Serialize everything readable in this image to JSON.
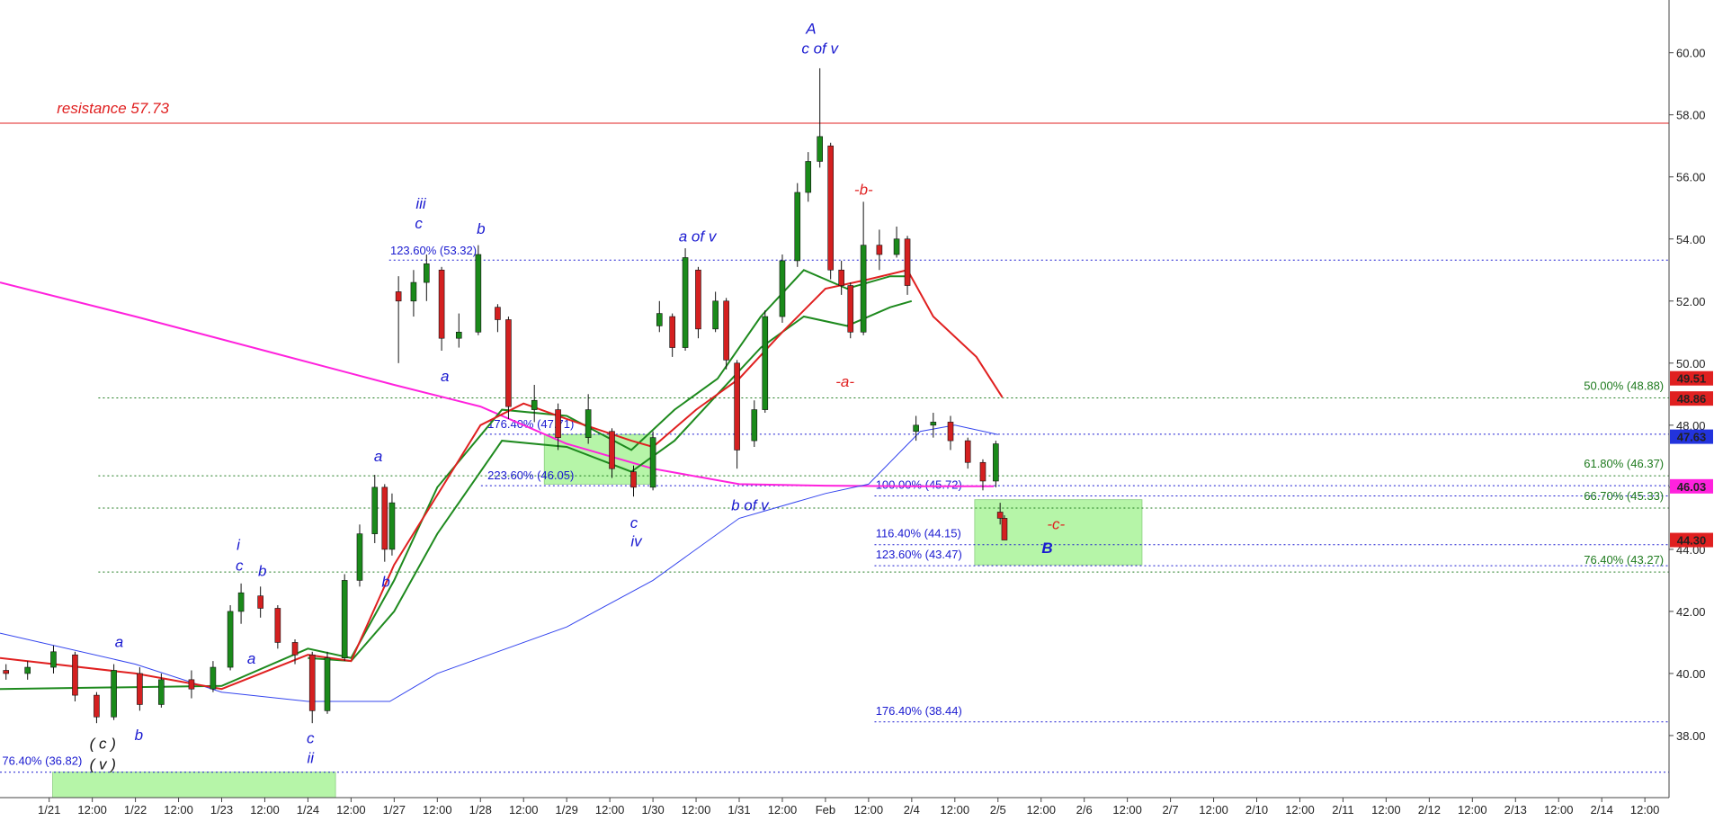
{
  "chart_data": {
    "type": "candlestick",
    "xlim": [
      -1.14,
      37.56
    ],
    "ylim": [
      36.0,
      61.7
    ],
    "xticks": [
      {
        "value": 0,
        "label": "1/21"
      },
      {
        "value": 1,
        "label": "12:00"
      },
      {
        "value": 2,
        "label": "1/22"
      },
      {
        "value": 3,
        "label": "12:00"
      },
      {
        "value": 4,
        "label": "1/23"
      },
      {
        "value": 5,
        "label": "12:00"
      },
      {
        "value": 6,
        "label": "1/24"
      },
      {
        "value": 7,
        "label": "12:00"
      },
      {
        "value": 8,
        "label": "1/27"
      },
      {
        "value": 9,
        "label": "12:00"
      },
      {
        "value": 10,
        "label": "1/28"
      },
      {
        "value": 11,
        "label": "12:00"
      },
      {
        "value": 12,
        "label": "1/29"
      },
      {
        "value": 13,
        "label": "12:00"
      },
      {
        "value": 14,
        "label": "1/30"
      },
      {
        "value": 15,
        "label": "12:00"
      },
      {
        "value": 16,
        "label": "1/31"
      },
      {
        "value": 17,
        "label": "12:00"
      },
      {
        "value": 18,
        "label": "Feb"
      },
      {
        "value": 19,
        "label": "12:00"
      },
      {
        "value": 20,
        "label": "2/4"
      },
      {
        "value": 21,
        "label": "12:00"
      },
      {
        "value": 22,
        "label": "2/5"
      },
      {
        "value": 23,
        "label": "12:00"
      },
      {
        "value": 24,
        "label": "2/6"
      },
      {
        "value": 25,
        "label": "12:00"
      },
      {
        "value": 26,
        "label": "2/7"
      },
      {
        "value": 27,
        "label": "12:00"
      },
      {
        "value": 28,
        "label": "2/10"
      },
      {
        "value": 29,
        "label": "12:00"
      },
      {
        "value": 30,
        "label": "2/11"
      },
      {
        "value": 31,
        "label": "12:00"
      },
      {
        "value": 32,
        "label": "2/12"
      },
      {
        "value": 33,
        "label": "12:00"
      },
      {
        "value": 34,
        "label": "2/13"
      },
      {
        "value": 35,
        "label": "12:00"
      },
      {
        "value": 36,
        "label": "2/14"
      },
      {
        "value": 37,
        "label": "12:00"
      }
    ],
    "yticks": [
      {
        "value": 38,
        "label": "38.00"
      },
      {
        "value": 40,
        "label": "40.00"
      },
      {
        "value": 42,
        "label": "42.00"
      },
      {
        "value": 44,
        "label": "44.00"
      },
      {
        "value": 46,
        "label": "46.00"
      },
      {
        "value": 48,
        "label": "48.00"
      },
      {
        "value": 50,
        "label": "50.00"
      },
      {
        "value": 52,
        "label": "52.00"
      },
      {
        "value": 54,
        "label": "54.00"
      },
      {
        "value": 56,
        "label": "56.00"
      },
      {
        "value": 58,
        "label": "58.00"
      },
      {
        "value": 60,
        "label": "60.00"
      }
    ],
    "up_color": "#1a8a1a",
    "down_color": "#d42020",
    "candles": {
      "x": [
        -1.0,
        -0.5,
        0.1,
        0.6,
        1.1,
        1.5,
        2.1,
        2.6,
        3.3,
        3.8,
        4.2,
        4.45,
        4.9,
        5.3,
        5.7,
        6.1,
        6.45,
        6.85,
        7.2,
        7.55,
        7.78,
        7.95,
        8.1,
        8.45,
        8.75,
        9.1,
        9.5,
        9.95,
        10.4,
        10.65,
        11.25,
        11.8,
        12.5,
        13.05,
        13.55,
        14.0,
        14.15,
        14.45,
        14.75,
        15.05,
        15.45,
        15.7,
        15.95,
        16.35,
        16.6,
        17.0,
        17.35,
        17.6,
        17.87,
        18.12,
        18.37,
        18.58,
        18.88,
        19.25,
        19.65,
        19.9,
        20.1,
        20.5,
        20.9,
        21.3,
        21.65,
        21.95,
        22.05,
        22.15
      ],
      "open": [
        40.1,
        40.0,
        40.2,
        40.6,
        39.3,
        38.6,
        40.0,
        39.0,
        39.8,
        39.5,
        40.2,
        42.0,
        42.5,
        42.1,
        41.0,
        40.6,
        38.8,
        40.5,
        43.0,
        44.5,
        46.0,
        44.0,
        52.3,
        52.0,
        52.6,
        53.0,
        50.8,
        51.0,
        51.8,
        51.4,
        48.5,
        48.5,
        47.6,
        47.8,
        46.5,
        46.0,
        51.2,
        51.5,
        50.5,
        53.0,
        51.1,
        52.0,
        50.0,
        47.5,
        48.5,
        51.5,
        53.3,
        55.5,
        56.5,
        57.0,
        53.0,
        52.5,
        51.0,
        53.8,
        53.5,
        54.0,
        47.8,
        48.0,
        48.1,
        47.5,
        46.8,
        46.2,
        45.2,
        45.0
      ],
      "high": [
        40.3,
        40.4,
        40.9,
        40.7,
        39.4,
        40.3,
        40.2,
        40.0,
        40.1,
        40.4,
        42.2,
        42.9,
        42.8,
        42.2,
        41.1,
        40.7,
        40.7,
        43.2,
        44.8,
        46.4,
        46.1,
        45.8,
        52.8,
        53.0,
        53.5,
        53.1,
        51.6,
        53.8,
        51.9,
        51.5,
        49.3,
        48.7,
        49.0,
        47.9,
        46.7,
        47.8,
        52.0,
        51.6,
        53.7,
        53.1,
        52.3,
        52.1,
        50.1,
        48.8,
        51.7,
        53.5,
        55.8,
        56.8,
        59.5,
        57.1,
        53.3,
        52.6,
        55.2,
        54.3,
        54.4,
        54.1,
        48.3,
        48.4,
        48.3,
        47.6,
        46.9,
        47.5,
        45.5,
        45.1
      ],
      "low": [
        39.8,
        39.8,
        40.0,
        39.1,
        38.4,
        38.5,
        38.8,
        38.9,
        39.2,
        39.4,
        40.1,
        41.6,
        41.8,
        40.8,
        40.3,
        38.4,
        38.7,
        40.4,
        42.8,
        44.2,
        43.6,
        43.8,
        50.0,
        51.5,
        52.0,
        50.4,
        50.5,
        50.9,
        51.0,
        48.2,
        48.1,
        47.2,
        47.4,
        46.3,
        45.7,
        45.9,
        51.0,
        50.2,
        50.4,
        50.8,
        51.0,
        49.8,
        46.6,
        47.3,
        48.4,
        51.3,
        53.1,
        55.2,
        56.3,
        52.7,
        52.2,
        50.8,
        50.9,
        53.0,
        53.4,
        52.2,
        47.5,
        47.6,
        47.2,
        46.6,
        45.9,
        46.0,
        44.8,
        44.3
      ],
      "close": [
        40.0,
        40.2,
        40.7,
        39.3,
        38.6,
        40.1,
        39.0,
        39.8,
        39.5,
        40.2,
        42.0,
        42.6,
        42.1,
        41.0,
        40.6,
        38.8,
        40.5,
        43.0,
        44.5,
        46.0,
        44.0,
        45.5,
        52.0,
        52.6,
        53.2,
        50.8,
        51.0,
        53.5,
        51.4,
        48.6,
        48.8,
        47.6,
        48.5,
        46.6,
        46.0,
        47.6,
        51.6,
        50.5,
        53.4,
        51.1,
        52.0,
        50.1,
        47.2,
        48.5,
        51.5,
        53.3,
        55.5,
        56.5,
        57.3,
        53.0,
        52.5,
        51.0,
        53.8,
        53.5,
        54.0,
        52.5,
        48.0,
        48.1,
        47.5,
        46.8,
        46.2,
        47.4,
        45.0,
        44.3
      ]
    },
    "moving_averages": [
      {
        "color": "#ff22dd",
        "x": [
          -1.14,
          2,
          5,
          8,
          10,
          12,
          14,
          16,
          18,
          20,
          21.9
        ],
        "values": [
          52.6,
          51.5,
          50.4,
          49.3,
          48.6,
          47.4,
          46.6,
          46.1,
          46.05,
          46.03,
          46.03
        ]
      },
      {
        "color": "#3344ee",
        "x": [
          -1.14,
          2,
          4,
          6,
          7.9,
          9,
          12,
          14,
          16,
          18,
          19,
          20.2,
          21,
          22
        ],
        "values": [
          41.3,
          40.3,
          39.4,
          39.1,
          39.1,
          40.0,
          41.5,
          43.0,
          45.0,
          45.8,
          46.1,
          47.8,
          48.0,
          47.7
        ]
      },
      {
        "color": "#1e8a1e",
        "x": [
          -1.14,
          4,
          6,
          7,
          8,
          9,
          10.5,
          12,
          13.5,
          14.5,
          15.5,
          16.5,
          17.5,
          18.5,
          19.5,
          19.9
        ],
        "values": [
          39.5,
          39.6,
          40.8,
          40.5,
          43.0,
          46.0,
          48.5,
          48.3,
          47.2,
          48.5,
          49.5,
          51.5,
          53.0,
          52.4,
          52.8,
          52.8
        ]
      },
      {
        "color": "#1e8a1e",
        "x": [
          6,
          7,
          8,
          9,
          10.5,
          12,
          13.5,
          14.5,
          15.5,
          16.5,
          17.5,
          18.5,
          19.5,
          20
        ],
        "values": [
          40.5,
          40.4,
          42.0,
          44.5,
          47.5,
          47.3,
          46.5,
          47.5,
          49.0,
          50.5,
          51.5,
          51.2,
          51.8,
          52.0
        ]
      },
      {
        "color": "#e02020",
        "x": [
          -1.14,
          2,
          4,
          6,
          7,
          8,
          10,
          11,
          12,
          13.5,
          14,
          15,
          16,
          17,
          18,
          19,
          19.9,
          20.5,
          21.5,
          22.1
        ],
        "values": [
          40.5,
          40.0,
          39.5,
          40.6,
          40.4,
          43.5,
          48.0,
          48.7,
          48.2,
          47.5,
          47.3,
          48.5,
          49.5,
          51.0,
          52.4,
          52.7,
          53.0,
          51.5,
          50.2,
          48.9
        ]
      }
    ],
    "levels": [
      {
        "value": 57.73,
        "label": "resistance 57.73",
        "color": "#e02020"
      },
      {
        "value": 53.32,
        "label": "123.60% (53.32)",
        "color": "#1a1ad0"
      },
      {
        "value": 48.88,
        "label": "50.00% (48.88)",
        "color": "#1e7a1e"
      },
      {
        "value": 47.71,
        "label": "176.40% (47.71)",
        "color": "#1a1ad0"
      },
      {
        "value": 46.37,
        "label": "61.80% (46.37)",
        "color": "#1e7a1e"
      },
      {
        "value": 46.05,
        "label": "223.60% (46.05)",
        "color": "#1a1ad0"
      },
      {
        "value": 45.72,
        "label": "100.00% (45.72)",
        "color": "#1a1ad0"
      },
      {
        "value": 45.33,
        "label": "66.70% (45.33)",
        "color": "#1e7a1e"
      },
      {
        "value": 44.15,
        "label": "116.40% (44.15)",
        "color": "#1a1ad0"
      },
      {
        "value": 43.47,
        "label": "123.60% (43.47)",
        "color": "#1a1ad0"
      },
      {
        "value": 43.27,
        "label": "76.40% (43.27)",
        "color": "#1e7a1e"
      },
      {
        "value": 38.44,
        "label": "176.40% (38.44)",
        "color": "#1a1ad0"
      },
      {
        "value": 36.82,
        "label": "76.40% (36.82)",
        "color": "#1a1ad0"
      }
    ],
    "price_labels": [
      {
        "value": 49.51,
        "label": "49.51",
        "color": "#e02020"
      },
      {
        "value": 48.86,
        "label": "48.86",
        "color": "#e02020"
      },
      {
        "value": 47.63,
        "label": "47.63",
        "color": "#2233dd"
      },
      {
        "value": 46.03,
        "label": "46.03",
        "color": "#ff22dd"
      },
      {
        "value": 44.3,
        "label": "44.30",
        "color": "#e02020"
      }
    ],
    "zones": [
      {
        "x": [
          11.48,
          13.99
        ],
        "y": [
          46.1,
          47.7
        ]
      },
      {
        "x": [
          21.46,
          25.34
        ],
        "y": [
          43.5,
          45.6
        ]
      },
      {
        "x": [
          0.08,
          6.64
        ],
        "y": [
          36.0,
          36.82
        ]
      }
    ],
    "annotations": [
      {
        "text": "A",
        "color": "#1a1ad0"
      },
      {
        "text": "c of v",
        "color": "#1a1ad0"
      },
      {
        "text": "-b-",
        "color": "#e02020"
      },
      {
        "text": "-a-",
        "color": "#e02020"
      },
      {
        "text": "iii",
        "color": "#1a1ad0"
      },
      {
        "text": "c",
        "color": "#1a1ad0"
      },
      {
        "text": "b",
        "color": "#1a1ad0"
      },
      {
        "text": "a",
        "color": "#1a1ad0"
      },
      {
        "text": "a of v",
        "color": "#1a1ad0"
      },
      {
        "text": "a",
        "color": "#1a1ad0"
      },
      {
        "text": "b",
        "color": "#1a1ad0"
      },
      {
        "text": "i",
        "color": "#1a1ad0"
      },
      {
        "text": "c",
        "color": "#1a1ad0"
      },
      {
        "text": "b",
        "color": "#1a1ad0"
      },
      {
        "text": "a",
        "color": "#1a1ad0"
      },
      {
        "text": "a",
        "color": "#1a1ad0"
      },
      {
        "text": "b",
        "color": "#1a1ad0"
      },
      {
        "text": "c",
        "color": "#1a1ad0"
      },
      {
        "text": "ii",
        "color": "#1a1ad0"
      },
      {
        "text": "c",
        "color": "#1a1ad0"
      },
      {
        "text": "iv",
        "color": "#1a1ad0"
      },
      {
        "text": "b of v",
        "color": "#1a1ad0"
      },
      {
        "text": "-c-",
        "color": "#e02020"
      },
      {
        "text": "B",
        "color": "#1a1ad0"
      },
      {
        "text": "( c )",
        "color": "#111111"
      },
      {
        "text": "( v )",
        "color": "#111111"
      }
    ]
  }
}
